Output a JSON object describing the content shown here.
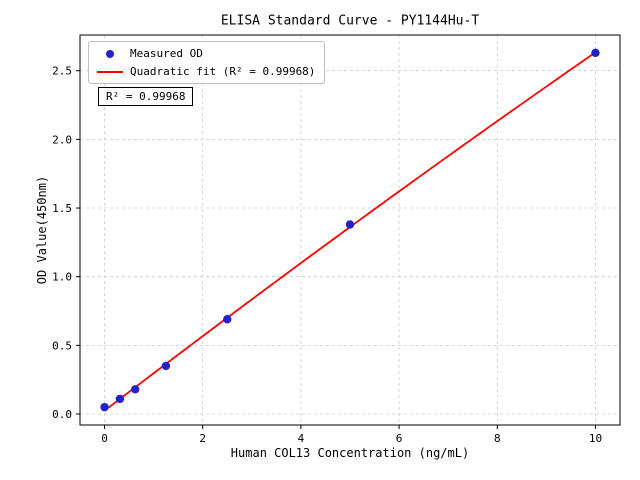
{
  "chart_data": {
    "type": "scatter",
    "title": "ELISA Standard Curve - PY1144Hu-T",
    "xlabel": "Human COL13 Concentration (ng/mL)",
    "ylabel": "OD Value(450nm)",
    "annotation": "R² = 0.99968",
    "xlim": [
      -0.5,
      10.5
    ],
    "ylim": [
      -0.08,
      2.76
    ],
    "xticks": {
      "values": [
        0,
        2,
        4,
        6,
        8,
        10
      ],
      "labels": [
        "0",
        "2",
        "4",
        "6",
        "8",
        "10"
      ]
    },
    "yticks": {
      "values": [
        0.0,
        0.5,
        1.0,
        1.5,
        2.0,
        2.5
      ],
      "labels": [
        "0.0",
        "0.5",
        "1.0",
        "1.5",
        "2.0",
        "2.5"
      ]
    },
    "grid": true,
    "legend_position": "upper-left",
    "series": [
      {
        "name": "Measured OD",
        "type": "scatter",
        "color": "#2222cc",
        "x": [
          0,
          0.3125,
          0.625,
          1.25,
          2.5,
          5,
          10
        ],
        "y": [
          0.05,
          0.11,
          0.18,
          0.35,
          0.69,
          1.38,
          2.63
        ]
      },
      {
        "name": "Quadratic fit (R² = 0.99968)",
        "type": "line",
        "fit": "quadratic",
        "color": "#ff0000",
        "x_range": [
          0,
          10
        ]
      }
    ],
    "colors": {
      "grid": "#cccccc",
      "frame": "#000000",
      "text": "#000000",
      "background": "#ffffff"
    }
  }
}
